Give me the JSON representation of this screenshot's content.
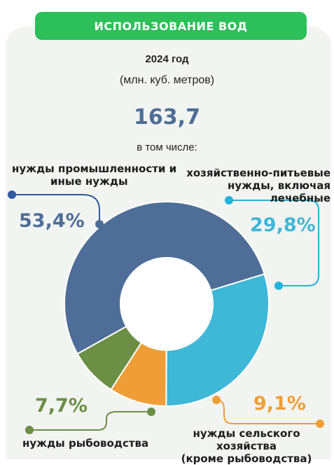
{
  "header": {
    "title": "ИСПОЛЬЗОВАНИЕ ВОД",
    "year": "2024 год",
    "unit": "(млн. куб. метров)",
    "total": "163,7",
    "including": "в том числе:"
  },
  "colors": {
    "banner": "#2dbf5a",
    "total": "#4e6e98"
  },
  "chart_data": {
    "type": "pie",
    "title": "ИСПОЛЬЗОВАНИЕ ВОД",
    "subtitle": "2024 год (млн. куб. метров)",
    "total": 163.7,
    "donut": true,
    "slices": [
      {
        "name": "нужды промышленности и иные нужды",
        "value": 53.4,
        "label": "53,4%",
        "color": "#4e6e98"
      },
      {
        "name": "хозяйственно-питьевые нужды, включая лечебные",
        "value": 29.8,
        "label": "29,8%",
        "color": "#3fb7d7"
      },
      {
        "name": "нужды сельского хозяйства (кроме рыбоводства)",
        "value": 9.1,
        "label": "9,1%",
        "color": "#ef9e37"
      },
      {
        "name": "нужды рыбоводства",
        "value": 7.7,
        "label": "7,7%",
        "color": "#6b8f44"
      }
    ]
  },
  "labels": {
    "industry_line1": "нужды промышленности и",
    "industry_line2": "иные нужды",
    "household_line1": "хозяйственно-питьевые",
    "household_line2": "нужды, включая лечебные",
    "agriculture_line1": "нужды сельского хозяйства",
    "agriculture_line2": "(кроме рыбоводства)",
    "fish": "нужды рыбоводства"
  }
}
